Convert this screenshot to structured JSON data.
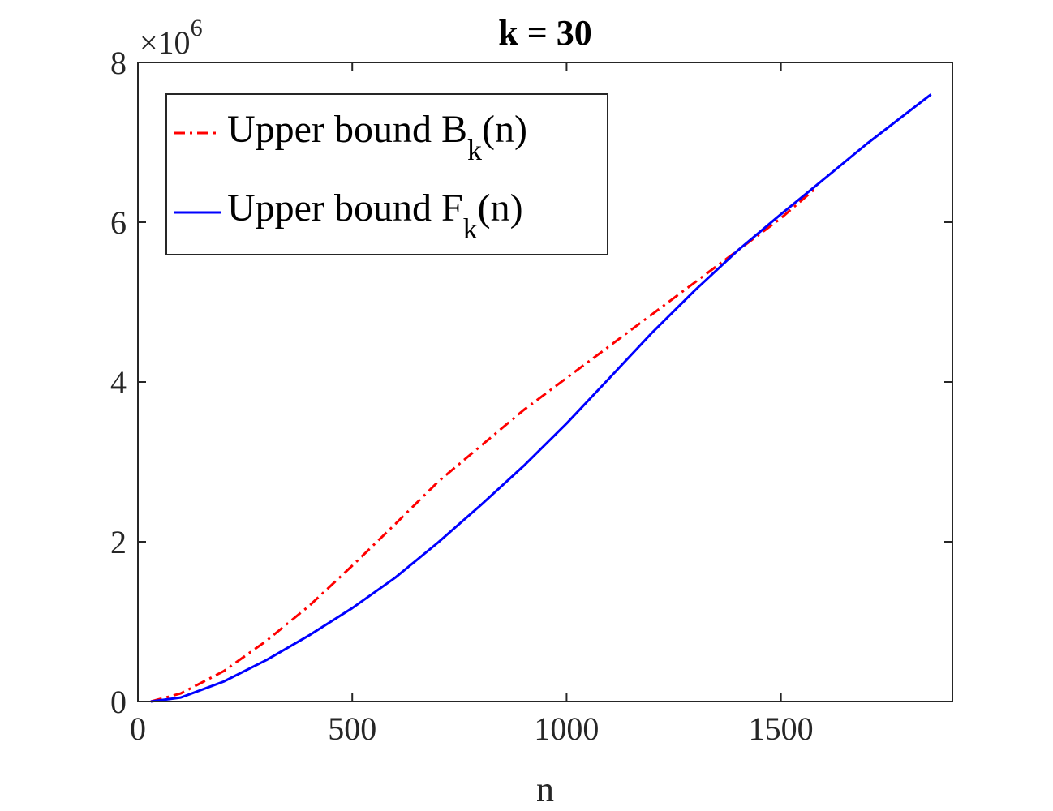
{
  "chart_data": {
    "type": "line",
    "title": "k = 30",
    "xlabel": "n",
    "ylabel": "",
    "xlim": [
      0,
      1900
    ],
    "ylim": [
      0,
      8000000
    ],
    "xticks": [
      0,
      500,
      1000,
      1500
    ],
    "xtick_labels": [
      "0",
      "500",
      "1000",
      "1500"
    ],
    "yticks": [
      0,
      2000000,
      4000000,
      6000000,
      8000000
    ],
    "ytick_labels": [
      "0",
      "2",
      "4",
      "6",
      "8"
    ],
    "y_exponent": {
      "base": "×10",
      "power": "6"
    },
    "grid": false,
    "legend_position": "top-left",
    "series": [
      {
        "name": "Upper bound B_k(n)",
        "legend": {
          "prefix": "Upper bound B",
          "sub": "k",
          "suffix": "(n)"
        },
        "color": "#ff0000",
        "style": "dash-dot",
        "x": [
          30,
          100,
          200,
          300,
          400,
          500,
          600,
          700,
          800,
          900,
          1000,
          1100,
          1200,
          1300,
          1400,
          1500,
          1580
        ],
        "y": [
          0,
          100000,
          380000,
          760000,
          1200000,
          1700000,
          2220000,
          2750000,
          3200000,
          3650000,
          4050000,
          4450000,
          4850000,
          5250000,
          5650000,
          6050000,
          6420000
        ]
      },
      {
        "name": "Upper bound F_k(n)",
        "legend": {
          "prefix": "Upper bound F",
          "sub": "k",
          "suffix": "(n)"
        },
        "color": "#0000ff",
        "style": "solid",
        "x": [
          30,
          100,
          200,
          300,
          400,
          500,
          600,
          700,
          800,
          900,
          1000,
          1100,
          1200,
          1300,
          1400,
          1500,
          1580,
          1700,
          1850
        ],
        "y": [
          0,
          50000,
          250000,
          520000,
          830000,
          1170000,
          1550000,
          1990000,
          2460000,
          2950000,
          3480000,
          4050000,
          4620000,
          5150000,
          5650000,
          6100000,
          6450000,
          6980000,
          7600000
        ]
      }
    ]
  }
}
